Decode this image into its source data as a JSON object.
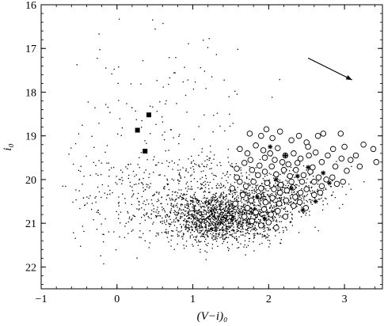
{
  "chart_data": {
    "type": "scatter",
    "title": "",
    "xlabel": "(V−i)₀",
    "ylabel": "i₀",
    "xlim": [
      -1,
      3.5
    ],
    "ylim": [
      22.5,
      16
    ],
    "y_inverted": true,
    "x_ticks": [
      -1,
      0,
      1,
      2,
      3
    ],
    "x_tick_labels": [
      "−1",
      "0",
      "1",
      "2",
      "3"
    ],
    "y_ticks": [
      16,
      17,
      18,
      19,
      20,
      21,
      22
    ],
    "y_tick_labels": [
      "16",
      "17",
      "18",
      "19",
      "20",
      "21",
      "22"
    ],
    "grid": false,
    "legend": "none",
    "series": [
      {
        "marker": "dot",
        "generated": {
          "clusters": [
            {
              "cx": 1.35,
              "cy": 20.85,
              "sx": 0.4,
              "sy": 0.3,
              "n": 1700
            },
            {
              "cx": 2.1,
              "cy": 20.35,
              "sx": 0.35,
              "sy": 0.3,
              "n": 500
            },
            {
              "cx": 0.95,
              "cy": 20.05,
              "sx": 0.4,
              "sy": 0.45,
              "n": 220
            },
            {
              "cx": 0.0,
              "cy": 20.45,
              "sx": 0.4,
              "sy": 0.6,
              "n": 170
            },
            {
              "cx": 0.6,
              "cy": 18.3,
              "sx": 0.6,
              "sy": 1.0,
              "n": 110
            }
          ]
        }
      },
      {
        "marker": "circle",
        "points": [
          [
            1.75,
            18.95
          ],
          [
            1.9,
            19.0
          ],
          [
            1.97,
            18.85
          ],
          [
            2.05,
            19.05
          ],
          [
            2.15,
            18.9
          ],
          [
            2.3,
            19.1
          ],
          [
            2.4,
            19.0
          ],
          [
            2.5,
            19.15
          ],
          [
            2.65,
            19.0
          ],
          [
            2.72,
            18.95
          ],
          [
            2.85,
            19.3
          ],
          [
            2.95,
            18.95
          ],
          [
            3.0,
            19.25
          ],
          [
            3.15,
            19.45
          ],
          [
            3.25,
            19.2
          ],
          [
            3.38,
            19.3
          ],
          [
            3.42,
            19.6
          ],
          [
            3.08,
            19.55
          ],
          [
            1.62,
            19.3
          ],
          [
            1.72,
            19.4
          ],
          [
            1.83,
            19.22
          ],
          [
            1.93,
            19.33
          ],
          [
            2.02,
            19.4
          ],
          [
            2.12,
            19.28
          ],
          [
            2.22,
            19.45
          ],
          [
            2.33,
            19.4
          ],
          [
            2.42,
            19.52
          ],
          [
            2.53,
            19.45
          ],
          [
            2.62,
            19.38
          ],
          [
            2.7,
            19.6
          ],
          [
            2.78,
            19.45
          ],
          [
            2.88,
            19.7
          ],
          [
            2.96,
            19.52
          ],
          [
            3.03,
            19.8
          ],
          [
            1.58,
            19.75
          ],
          [
            1.68,
            19.62
          ],
          [
            1.78,
            19.78
          ],
          [
            1.88,
            19.68
          ],
          [
            1.95,
            19.82
          ],
          [
            2.04,
            19.7
          ],
          [
            2.1,
            19.88
          ],
          [
            2.2,
            19.78
          ],
          [
            2.28,
            19.92
          ],
          [
            2.36,
            19.78
          ],
          [
            2.46,
            19.9
          ],
          [
            2.55,
            19.82
          ],
          [
            2.66,
            19.95
          ],
          [
            2.76,
            20.0
          ],
          [
            2.84,
            19.95
          ],
          [
            1.62,
            20.05
          ],
          [
            1.7,
            20.15
          ],
          [
            1.8,
            20.05
          ],
          [
            1.9,
            20.2
          ],
          [
            1.98,
            20.08
          ],
          [
            2.07,
            20.22
          ],
          [
            2.16,
            20.12
          ],
          [
            2.24,
            20.25
          ],
          [
            2.32,
            20.18
          ],
          [
            2.42,
            20.3
          ],
          [
            2.5,
            20.22
          ],
          [
            2.6,
            20.35
          ],
          [
            2.68,
            20.3
          ],
          [
            1.66,
            20.35
          ],
          [
            1.77,
            20.48
          ],
          [
            1.87,
            20.38
          ],
          [
            1.96,
            20.52
          ],
          [
            2.05,
            20.42
          ],
          [
            2.14,
            20.55
          ],
          [
            2.23,
            20.48
          ],
          [
            2.33,
            20.6
          ],
          [
            2.41,
            20.52
          ],
          [
            2.49,
            20.65
          ],
          [
            1.72,
            20.65
          ],
          [
            1.83,
            20.75
          ],
          [
            1.94,
            20.68
          ],
          [
            2.03,
            20.8
          ],
          [
            2.12,
            20.72
          ],
          [
            2.22,
            20.85
          ],
          [
            1.78,
            20.95
          ],
          [
            1.9,
            21.05
          ],
          [
            2.0,
            20.98
          ],
          [
            2.1,
            21.1
          ],
          [
            1.56,
            20.55
          ],
          [
            1.52,
            20.2
          ],
          [
            2.58,
            19.72
          ],
          [
            2.6,
            20.05
          ],
          [
            2.7,
            20.15
          ],
          [
            2.9,
            20.1
          ],
          [
            2.18,
            19.6
          ],
          [
            1.76,
            19.55
          ],
          [
            1.86,
            19.9
          ],
          [
            2.08,
            19.55
          ],
          [
            2.26,
            19.65
          ],
          [
            2.38,
            19.62
          ],
          [
            2.44,
            20.05
          ],
          [
            1.68,
            20.85
          ],
          [
            1.58,
            19.95
          ],
          [
            2.52,
            19.25
          ],
          [
            2.98,
            20.05
          ],
          [
            3.2,
            19.7
          ],
          [
            2.3,
            20.05
          ],
          [
            1.95,
            19.5
          ],
          [
            2.15,
            20.3
          ],
          [
            2.35,
            20.4
          ]
        ]
      },
      {
        "marker": "asterisk",
        "points": [
          [
            2.02,
            19.25
          ],
          [
            2.22,
            19.45
          ],
          [
            2.52,
            19.72
          ],
          [
            2.3,
            20.2
          ],
          [
            1.85,
            20.4
          ],
          [
            2.62,
            20.5
          ],
          [
            2.1,
            20.0
          ],
          [
            2.8,
            20.08
          ],
          [
            2.45,
            20.7
          ],
          [
            2.72,
            19.85
          ],
          [
            1.95,
            20.9
          ],
          [
            2.38,
            19.92
          ]
        ]
      },
      {
        "marker": "square",
        "points": [
          [
            0.42,
            18.52
          ],
          [
            0.27,
            18.87
          ],
          [
            0.37,
            19.35
          ]
        ]
      }
    ],
    "annotations": [
      {
        "type": "arrow",
        "from": [
          2.52,
          17.22
        ],
        "to": [
          3.1,
          17.72
        ]
      }
    ]
  }
}
